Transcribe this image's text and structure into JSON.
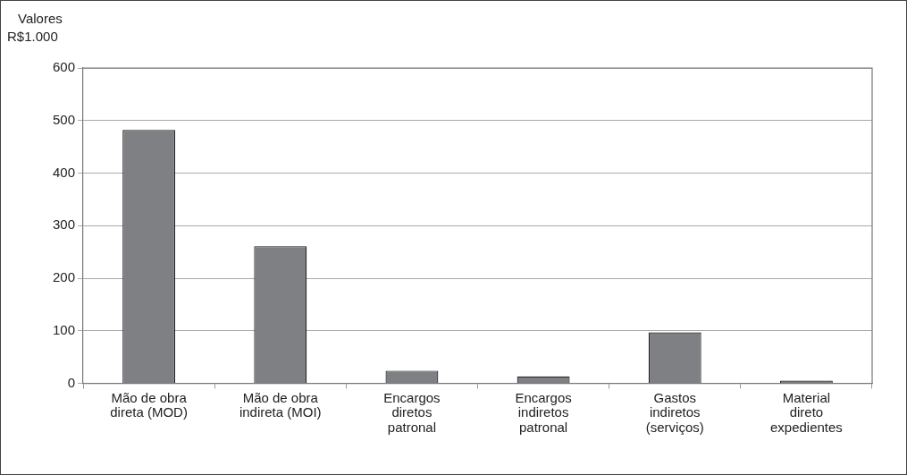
{
  "chart_data": {
    "type": "bar",
    "ylabel": "Valores\nR$1.000",
    "categories": [
      "Mão de obra\ndireta (MOD)",
      "Mão de obra\nindireta (MOI)",
      "Encargos\ndiretos\npatronal",
      "Encargos\nindiretos\npatronal",
      "Gastos\nindiretos\n(serviços)",
      "Material\ndireto\nexpedientes"
    ],
    "values": [
      482,
      261,
      24,
      13,
      97,
      5
    ],
    "color": "#7f8084",
    "ylim": [
      0,
      600
    ],
    "yticks": [
      0,
      100,
      200,
      300,
      400,
      500,
      600
    ],
    "grid": "y"
  }
}
